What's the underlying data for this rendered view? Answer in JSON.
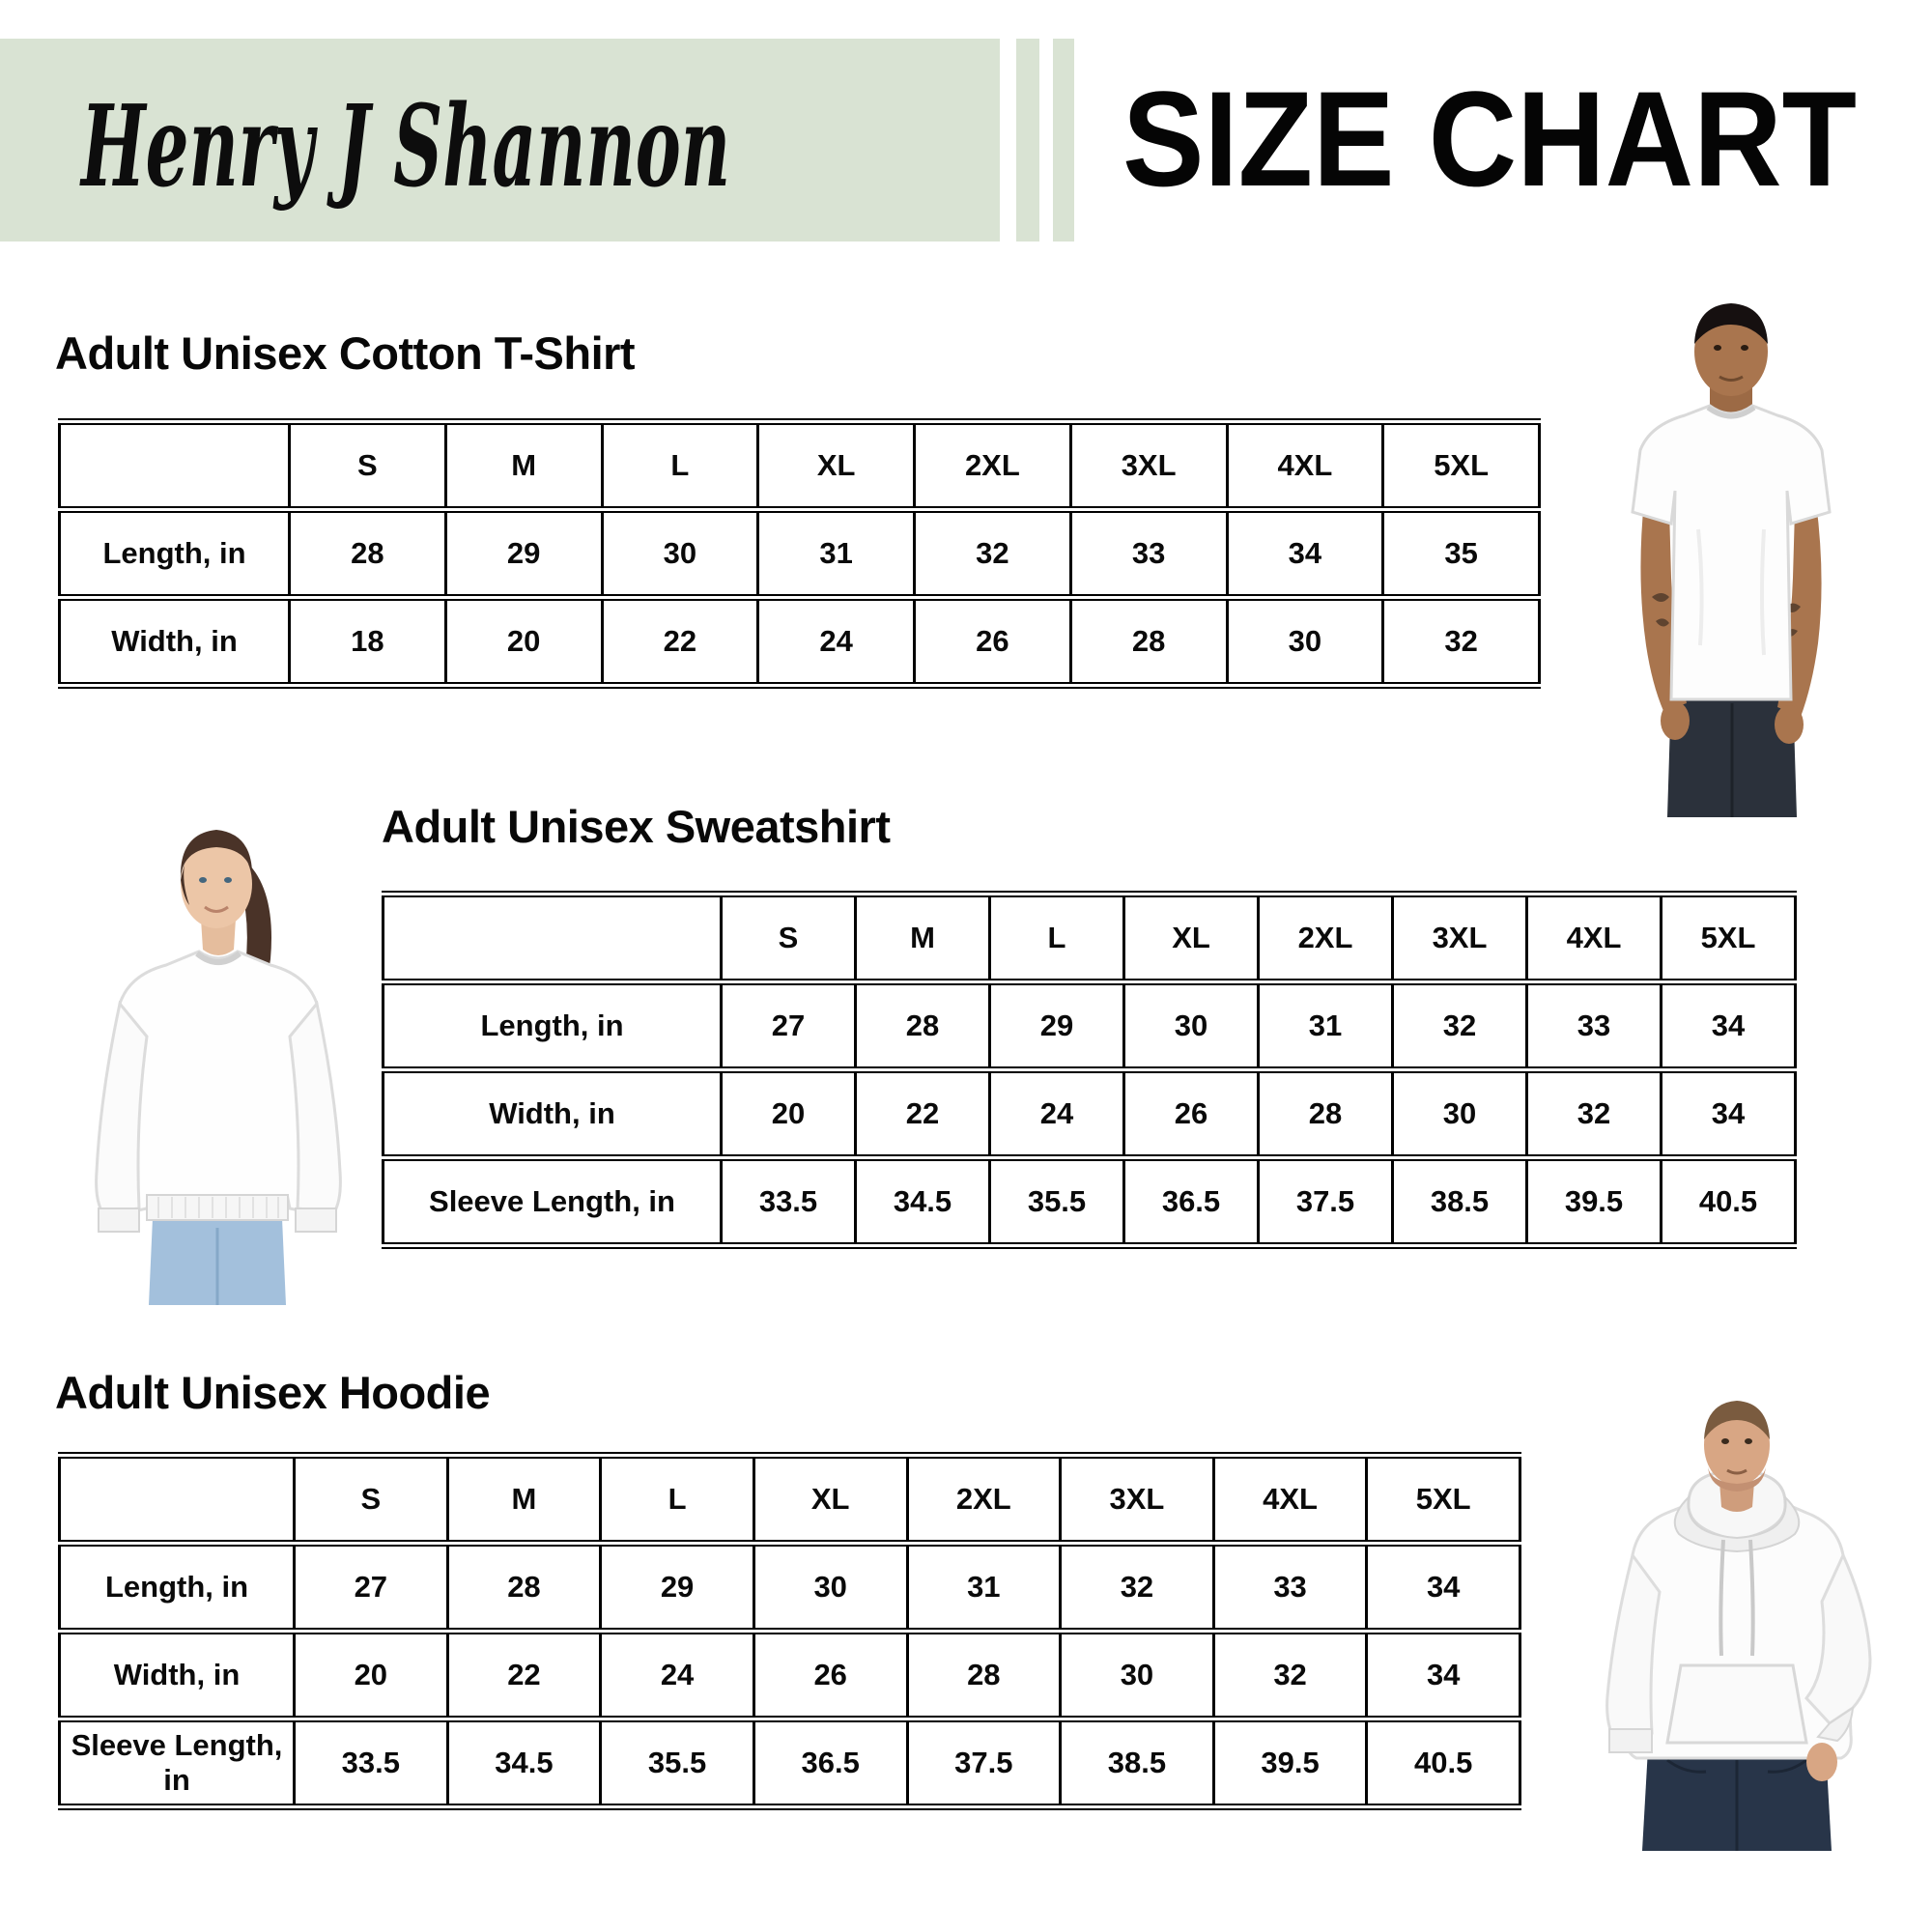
{
  "header": {
    "brand": "Henry J Shannon",
    "title": "SIZE CHART",
    "band_color": "#d9e3d3",
    "text_color": "#0a0a0a"
  },
  "sections": [
    {
      "title": "Adult Unisex Cotton T-Shirt",
      "columns": [
        "S",
        "M",
        "L",
        "XL",
        "2XL",
        "3XL",
        "4XL",
        "5XL"
      ],
      "rows": [
        {
          "label": "Length, in",
          "values": [
            "28",
            "29",
            "30",
            "31",
            "32",
            "33",
            "34",
            "35"
          ]
        },
        {
          "label": "Width, in",
          "values": [
            "18",
            "20",
            "22",
            "24",
            "26",
            "28",
            "30",
            "32"
          ]
        }
      ]
    },
    {
      "title": "Adult Unisex Sweatshirt",
      "columns": [
        "S",
        "M",
        "L",
        "XL",
        "2XL",
        "3XL",
        "4XL",
        "5XL"
      ],
      "rows": [
        {
          "label": "Length, in",
          "values": [
            "27",
            "28",
            "29",
            "30",
            "31",
            "32",
            "33",
            "34"
          ]
        },
        {
          "label": "Width, in",
          "values": [
            "20",
            "22",
            "24",
            "26",
            "28",
            "30",
            "32",
            "34"
          ]
        },
        {
          "label": "Sleeve Length, in",
          "values": [
            "33.5",
            "34.5",
            "35.5",
            "36.5",
            "37.5",
            "38.5",
            "39.5",
            "40.5"
          ]
        }
      ]
    },
    {
      "title": "Adult Unisex Hoodie",
      "columns": [
        "S",
        "M",
        "L",
        "XL",
        "2XL",
        "3XL",
        "4XL",
        "5XL"
      ],
      "rows": [
        {
          "label": "Length, in",
          "values": [
            "27",
            "28",
            "29",
            "30",
            "31",
            "32",
            "33",
            "34"
          ]
        },
        {
          "label": "Width, in",
          "values": [
            "20",
            "22",
            "24",
            "26",
            "28",
            "30",
            "32",
            "34"
          ]
        },
        {
          "label": "Sleeve Length, in",
          "values": [
            "33.5",
            "34.5",
            "35.5",
            "36.5",
            "37.5",
            "38.5",
            "39.5",
            "40.5"
          ]
        }
      ]
    }
  ]
}
